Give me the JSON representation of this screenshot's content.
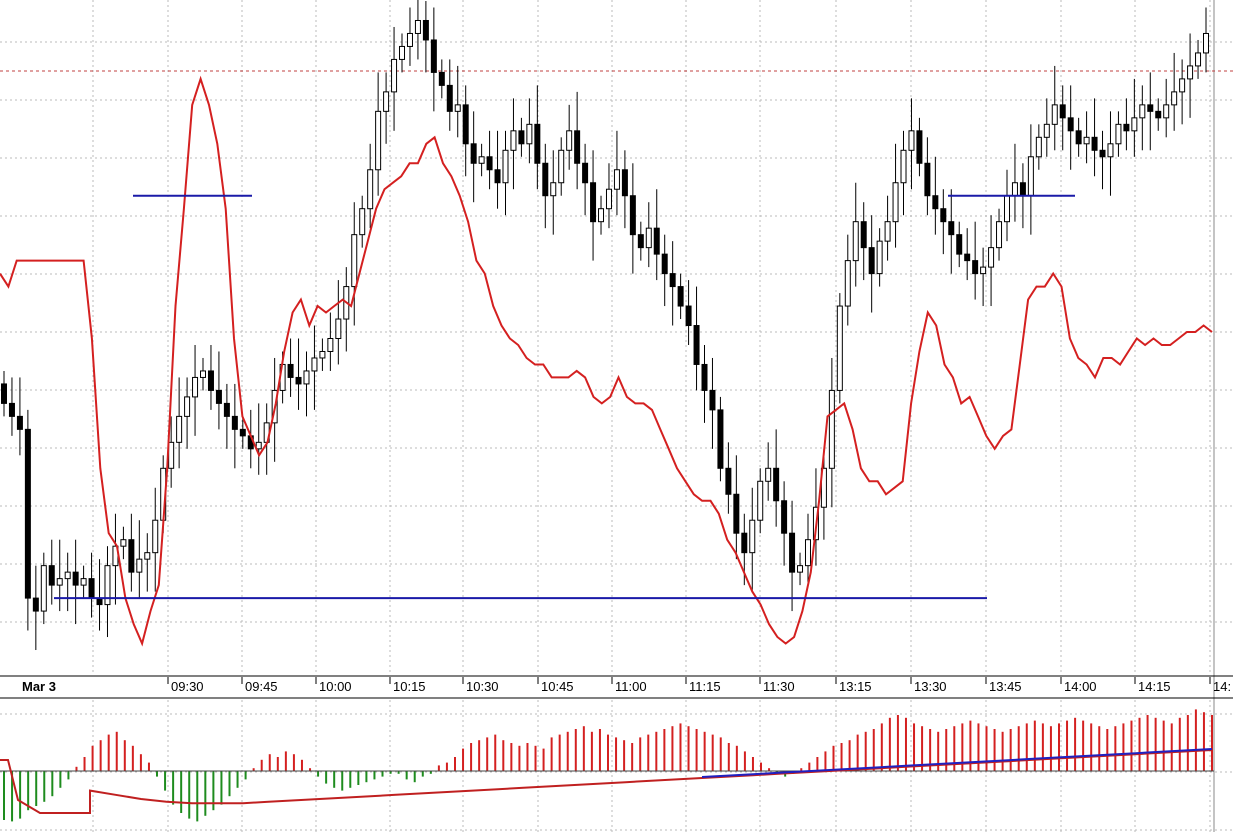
{
  "chart_data": [
    {
      "type": "candlestick",
      "panel": "price",
      "title": "",
      "xlabel": "",
      "ylabel": "",
      "date_label": "Mar 3",
      "x_tick_labels": [
        "09:30",
        "09:45",
        "10:00",
        "10:15",
        "10:30",
        "10:45",
        "11:00",
        "11:15",
        "11:30",
        "13:15",
        "13:30",
        "13:45",
        "14:00",
        "14:15",
        "14:"
      ],
      "ylim": [
        0,
        100
      ],
      "grid": true,
      "colors": {
        "up_candle": "#ffffff",
        "down_candle": "#000000",
        "oscillator": "#d42020",
        "levels": "#1a1aa8",
        "reference_line": "#c04040",
        "grid": "#bbbbbb"
      },
      "close": [
        40,
        38,
        36,
        10,
        8,
        15,
        12,
        13,
        14,
        12,
        13,
        10,
        9,
        15,
        18,
        19,
        14,
        16,
        17,
        22,
        30,
        34,
        38,
        41,
        44,
        45,
        42,
        40,
        38,
        36,
        35,
        33,
        34,
        37,
        42,
        46,
        44,
        43,
        45,
        47,
        48,
        50,
        53,
        58,
        66,
        70,
        76,
        85,
        88,
        93,
        95,
        97,
        99,
        96,
        91,
        89,
        85,
        86,
        80,
        77,
        78,
        76,
        74,
        79,
        82,
        80,
        83,
        77,
        72,
        74,
        79,
        82,
        77,
        74,
        68,
        70,
        73,
        76,
        72,
        66,
        64,
        67,
        63,
        60,
        58,
        55,
        52,
        46,
        42,
        39,
        30,
        26,
        20,
        17,
        22,
        28,
        30,
        25,
        20,
        14,
        15,
        19,
        24,
        30,
        42,
        55,
        62,
        68,
        64,
        60,
        65,
        68,
        74,
        79,
        82,
        77,
        72,
        70,
        68,
        66,
        63,
        62,
        60,
        61,
        64,
        68,
        72,
        74,
        72,
        78,
        81,
        83,
        86,
        84,
        82,
        80,
        81,
        79,
        78,
        80,
        83,
        82,
        84,
        86,
        85,
        84,
        86,
        88,
        90,
        92,
        94,
        97
      ],
      "range": [
        2,
        100
      ],
      "series": [
        {
          "name": "",
          "kind": "line",
          "values": [
            60,
            58,
            62,
            62,
            62,
            62,
            62,
            62,
            62,
            62,
            62,
            50,
            30,
            20,
            18,
            10,
            6,
            3,
            8,
            12,
            30,
            55,
            70,
            86,
            90,
            86,
            80,
            70,
            50,
            38,
            35,
            32,
            34,
            40,
            48,
            54,
            56,
            52,
            55,
            54,
            55,
            56,
            55,
            60,
            65,
            70,
            73,
            74,
            75,
            77,
            77,
            80,
            81,
            77,
            75,
            72,
            68,
            62,
            60,
            55,
            52,
            50,
            49,
            47,
            46,
            46,
            44,
            44,
            44,
            45,
            44,
            41,
            40,
            41,
            44,
            41,
            40,
            40,
            39,
            36,
            33,
            30,
            28,
            26,
            25,
            25,
            23,
            19,
            17,
            14,
            11,
            9,
            6,
            4,
            3,
            4,
            8,
            14,
            25,
            38,
            39,
            40,
            36,
            30,
            28,
            28,
            26,
            27,
            28,
            40,
            48,
            54,
            52,
            46,
            44,
            40,
            41,
            38,
            35,
            33,
            35,
            36,
            46,
            56,
            58,
            58,
            60,
            58,
            50,
            47,
            46,
            44,
            47,
            47,
            46,
            48,
            50,
            49,
            50,
            49,
            49,
            50,
            51,
            51,
            52,
            51
          ]
        },
        {
          "name": "",
          "kind": "level",
          "values": [
            72,
            72
          ]
        },
        {
          "name": "",
          "kind": "level",
          "values": [
            72,
            72
          ]
        },
        {
          "name": "",
          "kind": "level",
          "values": [
            10,
            10
          ]
        }
      ]
    },
    {
      "type": "bar",
      "panel": "histogram",
      "title": "",
      "xlabel": "",
      "ylabel": "",
      "ylim": [
        -40,
        45
      ],
      "colors": {
        "positive": "#d42020",
        "negative": "#1e8c1e",
        "signal": "#2020c0",
        "average": "#c02020"
      },
      "values": [
        -35,
        -36,
        -34,
        -28,
        -25,
        -22,
        -18,
        -12,
        -6,
        3,
        10,
        18,
        22,
        26,
        28,
        22,
        18,
        12,
        6,
        -4,
        -14,
        -24,
        -30,
        -34,
        -36,
        -32,
        -28,
        -24,
        -18,
        -12,
        -6,
        2,
        8,
        12,
        10,
        14,
        12,
        8,
        2,
        -4,
        -9,
        -12,
        -14,
        -12,
        -10,
        -8,
        -6,
        -4,
        -2,
        -2,
        -6,
        -8,
        -4,
        -2,
        4,
        6,
        10,
        16,
        20,
        22,
        24,
        26,
        22,
        20,
        18,
        20,
        18,
        16,
        24,
        26,
        28,
        30,
        32,
        28,
        30,
        26,
        24,
        22,
        20,
        24,
        26,
        28,
        30,
        32,
        34,
        32,
        30,
        28,
        26,
        24,
        20,
        18,
        14,
        10,
        6,
        2,
        -2,
        -4,
        -2,
        2,
        6,
        10,
        14,
        18,
        20,
        22,
        26,
        28,
        30,
        34,
        38,
        40,
        38,
        34,
        32,
        30,
        28,
        30,
        32,
        34,
        36,
        34,
        32,
        30,
        28,
        30,
        32,
        34,
        36,
        34,
        32,
        34,
        36,
        38,
        36,
        34,
        32,
        30,
        32,
        34,
        36,
        38,
        40,
        38,
        36,
        34,
        38,
        40,
        44,
        42,
        40
      ],
      "signal": [
        -14,
        -17,
        -20,
        -22,
        -23,
        -23,
        -23,
        -22,
        -21,
        -20,
        -19,
        -18,
        -17,
        -16,
        -15,
        -14,
        -13,
        -12,
        -11,
        -10,
        -9,
        -8,
        -7,
        -6,
        -5,
        -4,
        -3,
        -2,
        -1,
        0,
        1,
        2,
        3,
        4,
        5,
        6,
        7,
        8,
        9,
        10,
        11,
        12,
        13,
        14,
        15
      ]
    }
  ]
}
